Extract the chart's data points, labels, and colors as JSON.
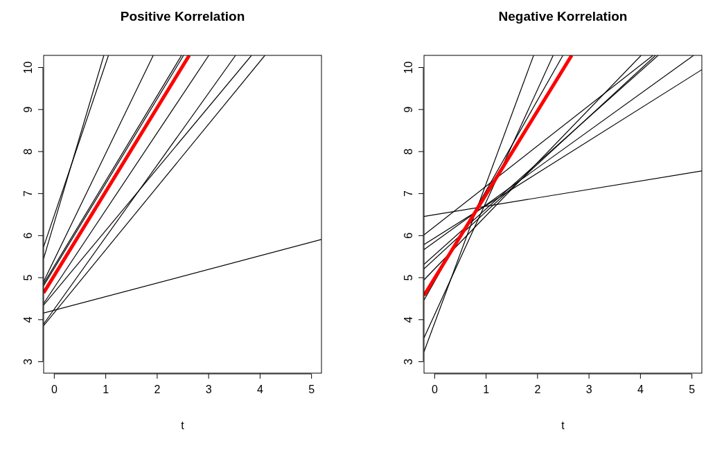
{
  "chart_data": [
    {
      "type": "line",
      "title": "Positive Korrelation",
      "xlabel": "t",
      "xlim": [
        -0.2,
        5.2
      ],
      "ylim": [
        2.72,
        10.28
      ],
      "xticks": [
        0,
        1,
        2,
        3,
        4,
        5
      ],
      "yticks": [
        3,
        4,
        5,
        6,
        7,
        8,
        9,
        10
      ],
      "grid": false,
      "marker": "none",
      "line_style": "solid",
      "series": [
        {
          "color": "#000000",
          "x": [
            -0.2,
            1.06
          ],
          "values": [
            5.73,
            10.28
          ]
        },
        {
          "color": "#000000",
          "x": [
            -0.2,
            0.97
          ],
          "values": [
            5.45,
            10.28
          ]
        },
        {
          "color": "#000000",
          "x": [
            -0.2,
            1.93
          ],
          "values": [
            4.9,
            10.28
          ]
        },
        {
          "color": "#000000",
          "x": [
            -0.2,
            2.48
          ],
          "values": [
            4.85,
            10.28
          ]
        },
        {
          "color": "#000000",
          "x": [
            -0.2,
            2.52
          ],
          "values": [
            4.8,
            10.28
          ]
        },
        {
          "color": "#000000",
          "x": [
            -0.2,
            3.01
          ],
          "values": [
            4.38,
            10.28
          ]
        },
        {
          "color": "#000000",
          "x": [
            -0.2,
            3.84
          ],
          "values": [
            4.34,
            10.28
          ]
        },
        {
          "color": "#000000",
          "x": [
            -0.2,
            3.53
          ],
          "values": [
            3.89,
            10.28
          ]
        },
        {
          "color": "#000000",
          "x": [
            -0.2,
            4.1
          ],
          "values": [
            3.85,
            10.28
          ]
        },
        {
          "color": "#000000",
          "x": [
            -0.2,
            5.2
          ],
          "values": [
            4.15,
            5.9
          ]
        },
        {
          "color": "#ff0000",
          "x": [
            -0.2,
            2.63
          ],
          "values": [
            4.63,
            10.28
          ]
        }
      ]
    },
    {
      "type": "line",
      "title": "Negative Korrelation",
      "xlabel": "t",
      "xlim": [
        -0.2,
        5.2
      ],
      "ylim": [
        2.72,
        10.28
      ],
      "xticks": [
        0,
        1,
        2,
        3,
        4,
        5
      ],
      "yticks": [
        3,
        4,
        5,
        6,
        7,
        8,
        9,
        10
      ],
      "grid": false,
      "marker": "none",
      "line_style": "solid",
      "series": [
        {
          "color": "#000000",
          "x": [
            -0.2,
            4.25
          ],
          "values": [
            6.01,
            10.28
          ]
        },
        {
          "color": "#000000",
          "x": [
            -0.2,
            5.2
          ],
          "values": [
            5.78,
            9.94
          ]
        },
        {
          "color": "#000000",
          "x": [
            -0.2,
            5.04
          ],
          "values": [
            5.66,
            10.28
          ]
        },
        {
          "color": "#000000",
          "x": [
            -0.2,
            4.35
          ],
          "values": [
            5.31,
            10.28
          ]
        },
        {
          "color": "#000000",
          "x": [
            -0.2,
            4.3
          ],
          "values": [
            5.2,
            10.28
          ]
        },
        {
          "color": "#000000",
          "x": [
            -0.2,
            4.02
          ],
          "values": [
            4.94,
            10.28
          ]
        },
        {
          "color": "#000000",
          "x": [
            -0.2,
            2.5
          ],
          "values": [
            4.46,
            10.28
          ]
        },
        {
          "color": "#000000",
          "x": [
            -0.2,
            2.31
          ],
          "values": [
            3.56,
            10.28
          ]
        },
        {
          "color": "#000000",
          "x": [
            -0.2,
            1.93
          ],
          "values": [
            3.23,
            10.28
          ]
        },
        {
          "color": "#000000",
          "x": [
            -0.2,
            5.2
          ],
          "values": [
            6.45,
            7.53
          ]
        },
        {
          "color": "#ff0000",
          "x": [
            -0.2,
            2.67
          ],
          "values": [
            4.57,
            10.28
          ]
        }
      ]
    }
  ]
}
